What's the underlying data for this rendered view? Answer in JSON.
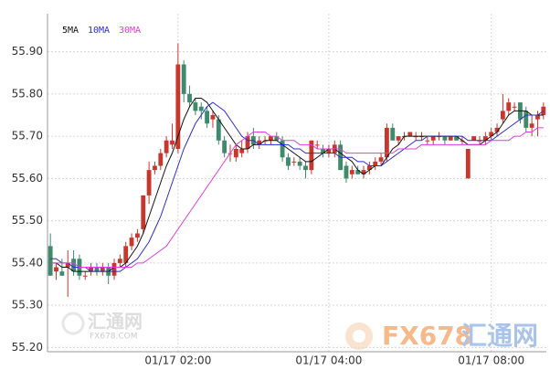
{
  "chart_data": {
    "type": "candlestick",
    "ylim": [
      55.19,
      55.99
    ],
    "yticks": [
      {
        "value": 55.9,
        "label": "55.90"
      },
      {
        "value": 55.8,
        "label": "55.80"
      },
      {
        "value": 55.7,
        "label": "55.70"
      },
      {
        "value": 55.6,
        "label": "55.60"
      },
      {
        "value": 55.5,
        "label": "55.50"
      },
      {
        "value": 55.4,
        "label": "55.40"
      },
      {
        "value": 55.3,
        "label": "55.30"
      },
      {
        "value": 55.2,
        "label": "55.20"
      }
    ],
    "grid": true,
    "up_color": "#c8372d",
    "down_color": "#3f8a6c",
    "categories": [
      null,
      null,
      null,
      null,
      null,
      null,
      null,
      null,
      null,
      null,
      null,
      null,
      null,
      null,
      null,
      null,
      null,
      null,
      null,
      null,
      null,
      null,
      "01/17 02:00",
      null,
      null,
      null,
      null,
      null,
      null,
      null,
      null,
      null,
      null,
      null,
      null,
      null,
      null,
      null,
      null,
      null,
      null,
      null,
      null,
      null,
      null,
      null,
      null,
      null,
      "01/17 04:00",
      null,
      null,
      null,
      null,
      null,
      null,
      null,
      null,
      null,
      null,
      null,
      null,
      null,
      null,
      null,
      null,
      null,
      null,
      null,
      null,
      null,
      null,
      null,
      null,
      null,
      null,
      null,
      "01/17 08:00",
      null,
      null,
      null,
      null,
      null,
      null,
      null,
      null,
      null
    ],
    "open": [
      55.44,
      55.38,
      55.38,
      55.39,
      55.41,
      55.41,
      55.37,
      55.38,
      55.39,
      55.38,
      55.39,
      55.37,
      55.4,
      55.4,
      55.44,
      55.46,
      55.48,
      55.56,
      55.62,
      55.63,
      55.66,
      55.68,
      55.67,
      55.87,
      55.8,
      55.78,
      55.77,
      55.76,
      55.74,
      55.74,
      55.69,
      55.66,
      55.65,
      55.66,
      55.67,
      55.7,
      55.68,
      55.69,
      55.69,
      55.7,
      55.69,
      55.65,
      55.64,
      55.64,
      55.63,
      55.62,
      55.68,
      55.67,
      55.66,
      55.66,
      55.68,
      55.63,
      55.61,
      55.62,
      55.61,
      55.62,
      55.63,
      55.64,
      55.65,
      55.72,
      55.69,
      55.7,
      55.7,
      55.7,
      55.7,
      55.69,
      55.69,
      55.7,
      55.7,
      55.69,
      55.7,
      55.69,
      55.6,
      55.69,
      55.69,
      55.69,
      55.7,
      55.71,
      55.74,
      55.76,
      55.77,
      55.78,
      55.76,
      55.72,
      55.74,
      55.75
    ],
    "high": [
      55.47,
      55.4,
      55.41,
      55.43,
      55.43,
      55.42,
      55.38,
      55.4,
      55.4,
      55.4,
      55.4,
      55.41,
      55.42,
      55.45,
      55.47,
      55.48,
      55.56,
      55.64,
      55.64,
      55.67,
      55.7,
      55.73,
      55.92,
      55.88,
      55.82,
      55.79,
      55.78,
      55.77,
      55.76,
      55.75,
      55.7,
      55.68,
      55.68,
      55.69,
      55.71,
      55.72,
      55.7,
      55.7,
      55.7,
      55.71,
      55.7,
      55.66,
      55.65,
      55.65,
      55.64,
      55.69,
      55.69,
      55.68,
      55.68,
      55.69,
      55.69,
      55.64,
      55.63,
      55.63,
      55.63,
      55.64,
      55.65,
      55.66,
      55.73,
      55.73,
      55.7,
      55.71,
      55.71,
      55.71,
      55.71,
      55.7,
      55.7,
      55.71,
      55.7,
      55.7,
      55.7,
      55.7,
      55.67,
      55.7,
      55.7,
      55.71,
      55.72,
      55.73,
      55.8,
      55.79,
      55.78,
      55.78,
      55.77,
      55.75,
      55.76,
      55.78
    ],
    "low": [
      55.37,
      55.36,
      55.37,
      55.32,
      55.37,
      55.36,
      55.36,
      55.37,
      55.37,
      55.37,
      55.35,
      55.36,
      55.39,
      55.39,
      55.43,
      55.45,
      55.47,
      55.54,
      55.61,
      55.62,
      55.65,
      55.67,
      55.66,
      55.78,
      55.77,
      55.75,
      55.74,
      55.72,
      55.72,
      55.68,
      55.65,
      55.64,
      55.64,
      55.65,
      55.66,
      55.67,
      55.67,
      55.68,
      55.68,
      55.69,
      55.64,
      55.62,
      55.63,
      55.62,
      55.6,
      55.61,
      55.67,
      55.65,
      55.65,
      55.65,
      55.62,
      55.59,
      55.6,
      55.61,
      55.6,
      55.61,
      55.62,
      55.63,
      55.64,
      55.69,
      55.68,
      55.69,
      55.7,
      55.69,
      55.69,
      55.68,
      55.68,
      55.69,
      55.68,
      55.69,
      55.69,
      55.68,
      55.6,
      55.69,
      55.68,
      55.68,
      55.69,
      55.7,
      55.73,
      55.75,
      55.76,
      55.73,
      55.71,
      55.7,
      55.7,
      55.74
    ],
    "close": [
      55.37,
      55.39,
      55.37,
      55.4,
      55.38,
      55.37,
      55.37,
      55.39,
      55.38,
      55.39,
      55.37,
      55.4,
      55.41,
      55.44,
      55.46,
      55.47,
      55.56,
      55.62,
      55.63,
      55.66,
      55.69,
      55.69,
      55.87,
      55.8,
      55.78,
      55.76,
      55.76,
      55.73,
      55.75,
      55.69,
      55.66,
      55.66,
      55.67,
      55.67,
      55.7,
      55.68,
      55.69,
      55.69,
      55.7,
      55.69,
      55.65,
      55.63,
      55.64,
      55.63,
      55.62,
      55.69,
      55.68,
      55.66,
      55.67,
      55.68,
      55.62,
      55.6,
      55.62,
      55.61,
      55.62,
      55.63,
      55.64,
      55.65,
      55.72,
      55.69,
      55.7,
      55.7,
      55.71,
      55.7,
      55.7,
      55.69,
      55.7,
      55.7,
      55.69,
      55.7,
      55.69,
      55.69,
      55.67,
      55.7,
      55.69,
      55.7,
      55.71,
      55.72,
      55.76,
      55.78,
      55.77,
      55.74,
      55.72,
      55.73,
      55.75,
      55.77
    ],
    "series": [
      {
        "name": "5MA",
        "color": "#111111",
        "values": [
          55.4,
          55.4,
          55.39,
          55.39,
          55.38,
          55.38,
          55.38,
          55.38,
          55.38,
          55.38,
          55.38,
          55.39,
          55.39,
          55.4,
          55.42,
          55.44,
          55.47,
          55.51,
          55.55,
          55.59,
          55.63,
          55.66,
          55.7,
          55.74,
          55.77,
          55.79,
          55.79,
          55.78,
          55.76,
          55.74,
          55.72,
          55.7,
          55.68,
          55.67,
          55.67,
          55.68,
          55.68,
          55.69,
          55.69,
          55.69,
          55.68,
          55.67,
          55.66,
          55.65,
          55.64,
          55.64,
          55.65,
          55.66,
          55.67,
          55.67,
          55.66,
          55.65,
          55.64,
          55.62,
          55.61,
          55.62,
          55.63,
          55.63,
          55.65,
          55.67,
          55.68,
          55.7,
          55.7,
          55.7,
          55.7,
          55.7,
          55.7,
          55.7,
          55.7,
          55.7,
          55.7,
          55.69,
          55.68,
          55.68,
          55.68,
          55.69,
          55.7,
          55.71,
          55.73,
          55.75,
          55.76,
          55.76,
          55.76,
          55.75,
          55.75,
          55.75
        ]
      },
      {
        "name": "10MA",
        "color": "#2b2bd6",
        "values": [
          55.41,
          55.41,
          55.4,
          55.4,
          55.39,
          55.39,
          55.39,
          55.38,
          55.38,
          55.38,
          55.38,
          55.38,
          55.38,
          55.39,
          55.4,
          55.41,
          55.43,
          55.45,
          55.48,
          55.51,
          55.55,
          55.59,
          55.63,
          55.67,
          55.7,
          55.73,
          55.75,
          55.77,
          55.78,
          55.77,
          55.76,
          55.74,
          55.72,
          55.7,
          55.69,
          55.69,
          55.68,
          55.68,
          55.68,
          55.68,
          55.68,
          55.68,
          55.67,
          55.67,
          55.66,
          55.66,
          55.66,
          55.66,
          55.66,
          55.66,
          55.65,
          55.65,
          55.65,
          55.64,
          55.64,
          55.63,
          55.63,
          55.63,
          55.64,
          55.65,
          55.66,
          55.67,
          55.68,
          55.69,
          55.69,
          55.7,
          55.7,
          55.7,
          55.7,
          55.7,
          55.7,
          55.7,
          55.69,
          55.69,
          55.69,
          55.69,
          55.69,
          55.7,
          55.71,
          55.72,
          55.73,
          55.74,
          55.75,
          55.75,
          55.75,
          55.76
        ]
      },
      {
        "name": "30MA",
        "color": "#e03ce0",
        "values": [
          55.4,
          55.4,
          55.4,
          55.4,
          55.4,
          55.39,
          55.39,
          55.39,
          55.39,
          55.39,
          55.39,
          55.39,
          55.39,
          55.39,
          55.39,
          55.4,
          55.4,
          55.41,
          55.42,
          55.43,
          55.44,
          55.46,
          55.48,
          55.5,
          55.52,
          55.54,
          55.56,
          55.58,
          55.6,
          55.62,
          55.64,
          55.66,
          55.68,
          55.69,
          55.7,
          55.71,
          55.71,
          55.71,
          55.7,
          55.7,
          55.69,
          55.69,
          55.69,
          55.68,
          55.68,
          55.68,
          55.67,
          55.67,
          55.67,
          55.67,
          55.67,
          55.66,
          55.66,
          55.66,
          55.66,
          55.66,
          55.66,
          55.66,
          55.66,
          55.66,
          55.67,
          55.67,
          55.67,
          55.67,
          55.68,
          55.68,
          55.68,
          55.68,
          55.68,
          55.68,
          55.68,
          55.68,
          55.68,
          55.68,
          55.68,
          55.68,
          55.69,
          55.69,
          55.69,
          55.69,
          55.7,
          55.7,
          55.71,
          55.71,
          55.72,
          55.72
        ]
      }
    ],
    "watermarks": [
      "汇通网",
      "FX678.COM",
      "FX678",
      "汇通网"
    ]
  }
}
